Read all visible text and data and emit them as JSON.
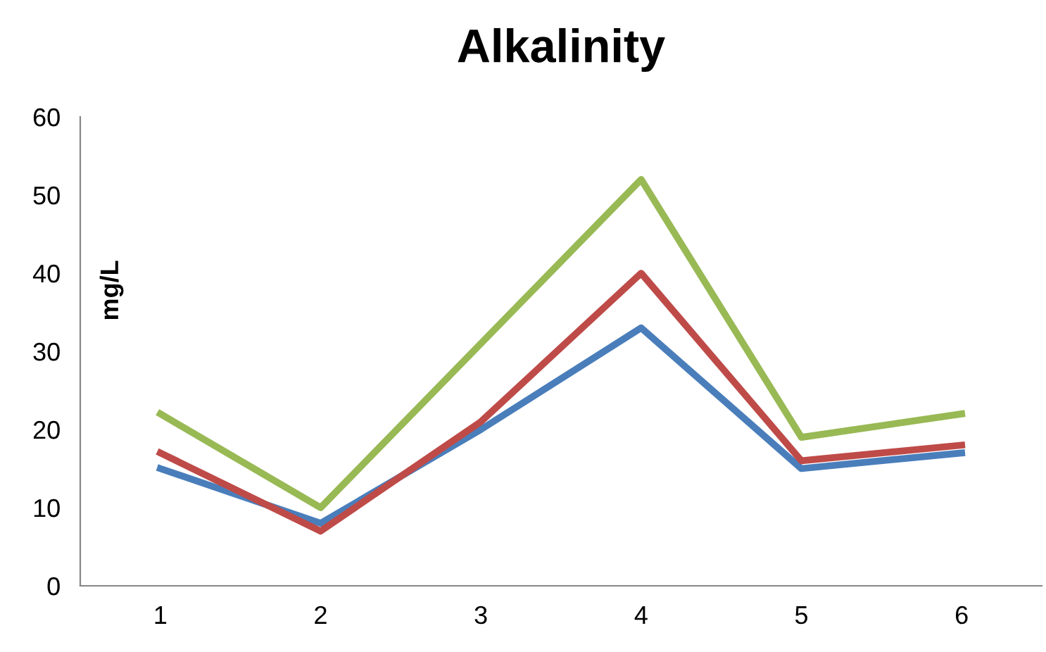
{
  "chart_data": {
    "type": "line",
    "title": "Alkalinity",
    "ylabel": "mg/L",
    "categories": [
      "1",
      "2",
      "3",
      "4",
      "5",
      "6"
    ],
    "series": [
      {
        "color": "#4a7ebb",
        "values": [
          15,
          8,
          20,
          33,
          15,
          17
        ]
      },
      {
        "color": "#be4b48",
        "values": [
          17,
          7,
          21,
          40,
          16,
          18
        ]
      },
      {
        "color": "#98b954",
        "values": [
          22,
          10,
          31,
          52,
          19,
          22
        ]
      }
    ],
    "ylim": [
      0,
      60
    ],
    "yticks": [
      0,
      10,
      20,
      30,
      40,
      50,
      60
    ],
    "grid": false,
    "marker": "none",
    "line_style": "solid"
  }
}
